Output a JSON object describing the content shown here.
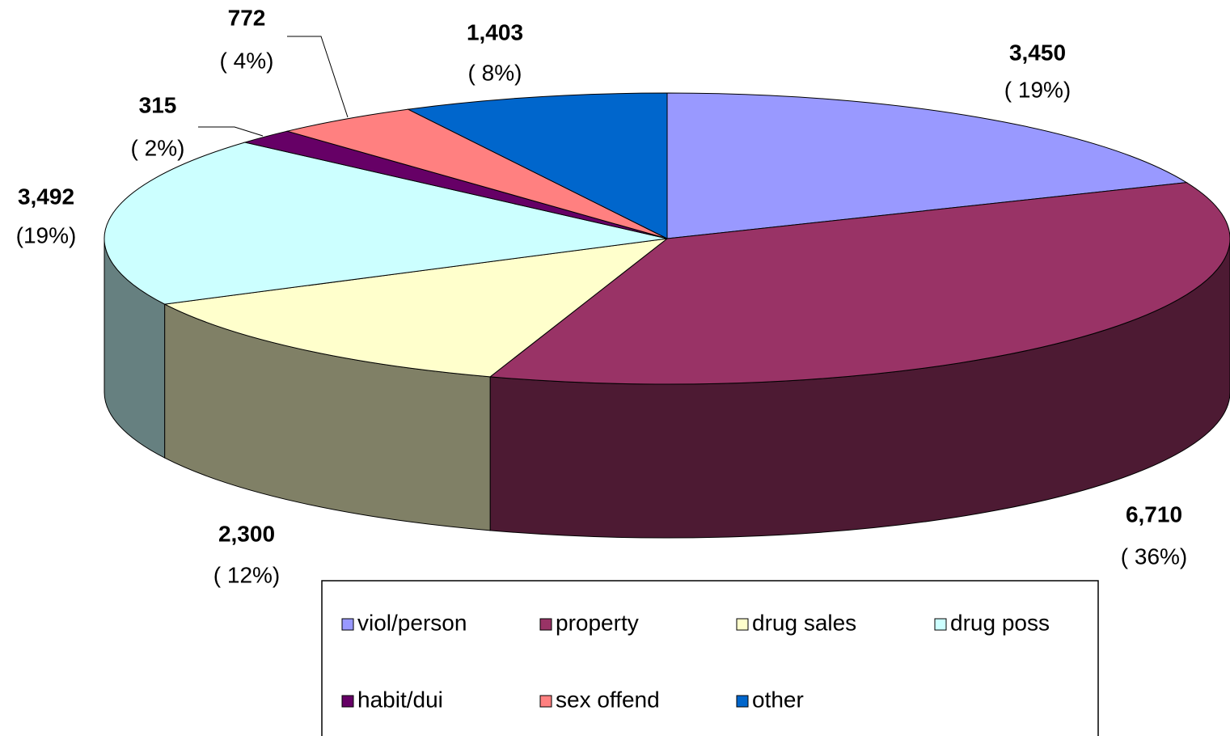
{
  "chart_data": {
    "type": "pie",
    "categories": [
      "viol/person",
      "property",
      "drug sales",
      "drug poss",
      "habit/dui",
      "sex offend",
      "other"
    ],
    "values": [
      3450,
      6710,
      2300,
      3492,
      315,
      772,
      1403
    ],
    "value_labels": [
      "3,450",
      "6,710",
      "2,300",
      "3,492",
      "315",
      "772",
      "1,403"
    ],
    "percent_labels": [
      "( 19%)",
      "( 36%)",
      "( 12%)",
      "(19%)",
      "( 2%)",
      "( 4%)",
      "( 8%)"
    ],
    "colors": [
      "#9999ff",
      "#993366",
      "#ffffcc",
      "#ccffff",
      "#660066",
      "#ff8080",
      "#0066cc"
    ],
    "legend": "bottom"
  }
}
